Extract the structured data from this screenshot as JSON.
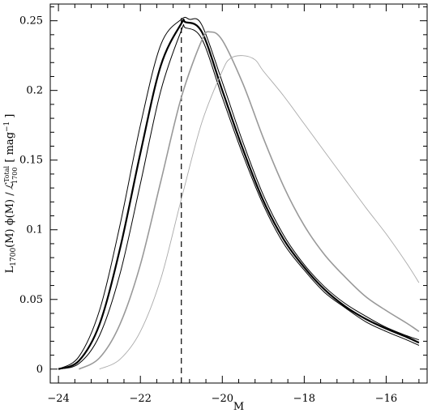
{
  "chart_data": {
    "type": "line",
    "title": "",
    "xlabel": "M",
    "ylabel": {
      "prefix": "L",
      "prefix_sub": "1700",
      "middle": "(M) ϕ(M) /",
      "script": "ℒ",
      "script_sup": "Total",
      "script_sub": "1700",
      "unit": "[ mag",
      "unit_sup": "−1",
      "unit_close": "]"
    },
    "xlim": [
      -24.2,
      -15.0
    ],
    "ylim": [
      -0.01,
      0.262
    ],
    "xticks": [
      -24,
      -22,
      -20,
      -18,
      -16
    ],
    "xtick_labels": [
      "−24",
      "−22",
      "−20",
      "−18",
      "−16"
    ],
    "yticks": [
      0,
      0.05,
      0.1,
      0.15,
      0.2,
      0.25
    ],
    "ytick_labels": [
      "0",
      "0.05",
      "0.1",
      "0.15",
      "0.2",
      "0.25"
    ],
    "grid": false,
    "vline": {
      "x": -21.0,
      "style": "dashed"
    },
    "series": [
      {
        "color": "#000000",
        "width": 2.2,
        "x": [
          -24.0,
          -23.5,
          -23.0,
          -22.5,
          -22.0,
          -21.5,
          -21.0,
          -20.9,
          -20.5,
          -20.0,
          -19.5,
          -19.0,
          -18.5,
          -18.0,
          -17.5,
          -17.0,
          -16.5,
          -16.0,
          -15.5,
          -15.2
        ],
        "y": [
          0.0,
          0.006,
          0.032,
          0.086,
          0.155,
          0.218,
          0.248,
          0.249,
          0.242,
          0.2,
          0.158,
          0.121,
          0.093,
          0.073,
          0.057,
          0.045,
          0.036,
          0.029,
          0.023,
          0.019
        ]
      },
      {
        "color": "#000000",
        "width": 1,
        "x": [
          -24.0,
          -23.5,
          -23.0,
          -22.5,
          -22.0,
          -21.5,
          -21.0,
          -20.8,
          -20.5,
          -20.0,
          -19.5,
          -19.0,
          -18.5,
          -18.0,
          -17.5,
          -17.0,
          -16.5,
          -16.0,
          -15.5,
          -15.2
        ],
        "y": [
          0.0,
          0.009,
          0.042,
          0.103,
          0.175,
          0.233,
          0.251,
          0.251,
          0.247,
          0.206,
          0.163,
          0.125,
          0.096,
          0.075,
          0.059,
          0.047,
          0.038,
          0.03,
          0.024,
          0.021
        ]
      },
      {
        "color": "#000000",
        "width": 1,
        "x": [
          -24.0,
          -23.5,
          -23.0,
          -22.5,
          -22.0,
          -21.5,
          -21.0,
          -20.9,
          -20.5,
          -20.0,
          -19.5,
          -19.0,
          -18.5,
          -18.0,
          -17.5,
          -17.0,
          -16.5,
          -16.0,
          -15.5,
          -15.2
        ],
        "y": [
          0.0,
          0.004,
          0.024,
          0.068,
          0.133,
          0.2,
          0.243,
          0.245,
          0.237,
          0.195,
          0.154,
          0.118,
          0.09,
          0.071,
          0.055,
          0.044,
          0.034,
          0.027,
          0.021,
          0.017
        ]
      },
      {
        "color": "#999999",
        "width": 1.6,
        "x": [
          -23.5,
          -23.0,
          -22.5,
          -22.0,
          -21.5,
          -21.0,
          -20.5,
          -20.3,
          -20.0,
          -19.5,
          -19.0,
          -18.5,
          -18.0,
          -17.5,
          -17.0,
          -16.5,
          -16.0,
          -15.5,
          -15.2
        ],
        "y": [
          0.0,
          0.008,
          0.032,
          0.075,
          0.135,
          0.195,
          0.236,
          0.242,
          0.236,
          0.205,
          0.166,
          0.131,
          0.103,
          0.082,
          0.066,
          0.052,
          0.042,
          0.033,
          0.027
        ]
      },
      {
        "color": "#aaaaaa",
        "width": 0.9,
        "x": [
          -23.0,
          -22.5,
          -22.0,
          -21.5,
          -21.0,
          -20.5,
          -20.0,
          -19.8,
          -19.5,
          -19.2,
          -19.0,
          -18.5,
          -18.0,
          -17.5,
          -17.0,
          -16.5,
          -16.0,
          -15.5,
          -15.2
        ],
        "y": [
          0.0,
          0.007,
          0.027,
          0.065,
          0.122,
          0.177,
          0.214,
          0.223,
          0.225,
          0.222,
          0.214,
          0.196,
          0.176,
          0.156,
          0.136,
          0.116,
          0.097,
          0.076,
          0.062
        ]
      }
    ]
  }
}
